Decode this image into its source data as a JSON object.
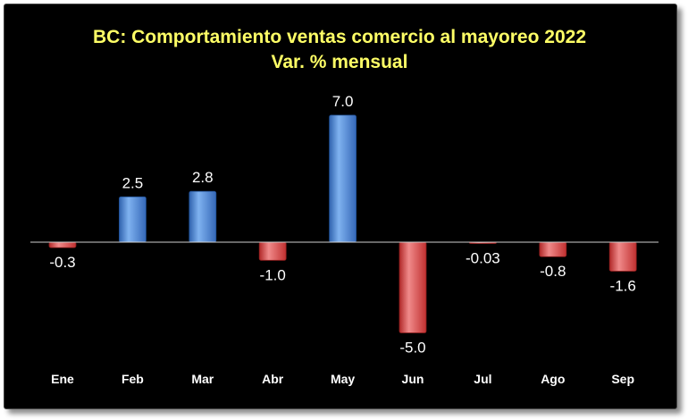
{
  "chart_data": {
    "type": "bar",
    "title": "BC: Comportamiento ventas comercio al mayoreo 2022",
    "subtitle": "Var. % mensual",
    "categories": [
      "Ene",
      "Feb",
      "Mar",
      "Abr",
      "May",
      "Jun",
      "Jul",
      "Ago",
      "Sep"
    ],
    "values": [
      -0.3,
      2.5,
      2.8,
      -1.0,
      7.0,
      -5.0,
      -0.03,
      -0.8,
      -1.6
    ],
    "data_labels": [
      "-0.3",
      "2.5",
      "2.8",
      "-1.0",
      "7.0",
      "-5.0",
      "-0.03",
      "-0.8",
      "-1.6"
    ],
    "xlabel": "",
    "ylabel": "",
    "ylim": [
      -5.0,
      7.0
    ],
    "grid": false,
    "legend": "none",
    "colors": {
      "positive": "#3f7fd3",
      "positive_light": "#7fb2f0",
      "negative": "#d93a3a",
      "negative_light": "#f08a8a",
      "background": "#000000",
      "title": "#ffff66",
      "text": "#ffffff",
      "axis": "#d0d0d0"
    }
  }
}
